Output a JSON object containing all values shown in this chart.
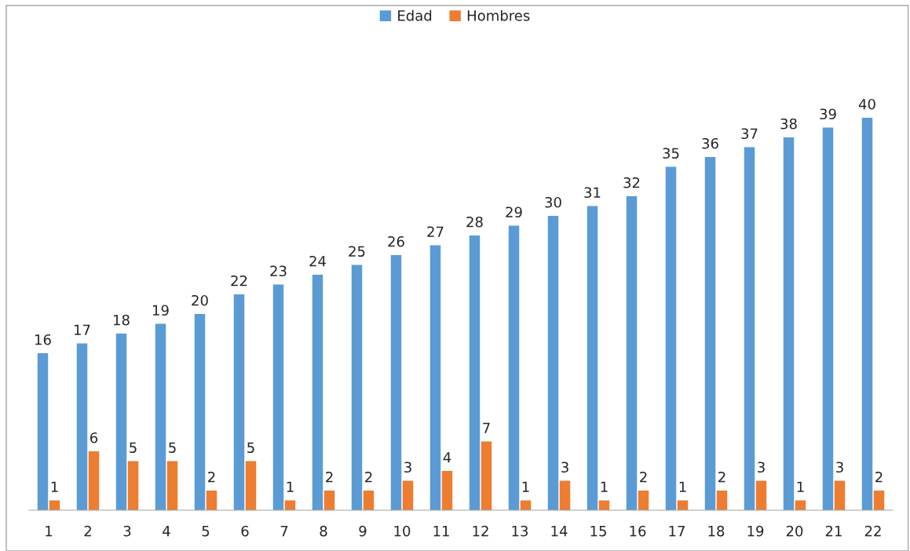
{
  "chart_data": {
    "type": "bar",
    "categories": [
      "1",
      "2",
      "3",
      "4",
      "5",
      "6",
      "7",
      "8",
      "9",
      "10",
      "11",
      "12",
      "13",
      "14",
      "15",
      "16",
      "17",
      "18",
      "19",
      "20",
      "21",
      "22"
    ],
    "series": [
      {
        "name": "Edad",
        "color": "#5b9bd5",
        "values": [
          16,
          17,
          18,
          19,
          20,
          22,
          23,
          24,
          25,
          26,
          27,
          28,
          29,
          30,
          31,
          32,
          35,
          36,
          37,
          38,
          39,
          40
        ]
      },
      {
        "name": "Hombres",
        "color": "#ed7d31",
        "values": [
          1,
          6,
          5,
          5,
          2,
          5,
          1,
          2,
          2,
          3,
          4,
          7,
          1,
          3,
          1,
          2,
          1,
          2,
          3,
          1,
          3,
          2
        ]
      }
    ],
    "data_labels": true,
    "legend": "top",
    "grid": false,
    "tick_labels": "x"
  }
}
